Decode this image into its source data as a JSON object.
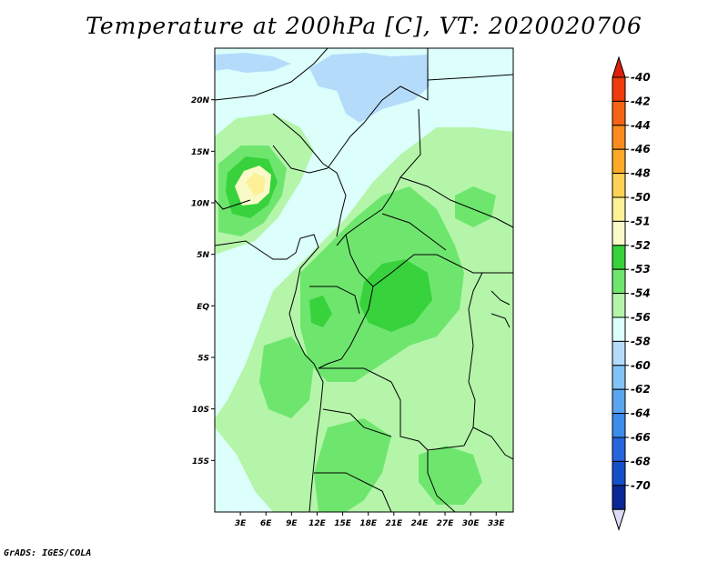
{
  "title": "Temperature at 200hPa [C], VT: 2020020706",
  "credit": "GrADS: IGES/COLA",
  "map": {
    "lat_ticks": [
      {
        "lat": 20,
        "label": "20N"
      },
      {
        "lat": 15,
        "label": "15N"
      },
      {
        "lat": 10,
        "label": "10N"
      },
      {
        "lat": 5,
        "label": "5N"
      },
      {
        "lat": 0,
        "label": "EQ"
      },
      {
        "lat": -5,
        "label": "5S"
      },
      {
        "lat": -10,
        "label": "10S"
      },
      {
        "lat": -15,
        "label": "15S"
      }
    ],
    "lon_ticks": [
      {
        "lon": 3,
        "label": "3E"
      },
      {
        "lon": 6,
        "label": "6E"
      },
      {
        "lon": 9,
        "label": "9E"
      },
      {
        "lon": 12,
        "label": "12E"
      },
      {
        "lon": 15,
        "label": "15E"
      },
      {
        "lon": 18,
        "label": "18E"
      },
      {
        "lon": 21,
        "label": "21E"
      },
      {
        "lon": 24,
        "label": "24E"
      },
      {
        "lon": 27,
        "label": "27E"
      },
      {
        "lon": 30,
        "label": "30E"
      },
      {
        "lon": 33,
        "label": "33E"
      }
    ],
    "lon_range": [
      0,
      35
    ],
    "lat_range": [
      -20,
      25
    ]
  },
  "colorbar": {
    "levels": [
      {
        "label": "-40",
        "color": "#f03c0a"
      },
      {
        "label": "-42",
        "color": "#f56414"
      },
      {
        "label": "-44",
        "color": "#fa8c1e"
      },
      {
        "label": "-46",
        "color": "#fcaa28"
      },
      {
        "label": "-48",
        "color": "#fdd255"
      },
      {
        "label": "-50",
        "color": "#fdf096"
      },
      {
        "label": "-51",
        "color": "#fafac8"
      },
      {
        "label": "-52",
        "color": "#37d23c"
      },
      {
        "label": "-53",
        "color": "#6ee66e"
      },
      {
        "label": "-54",
        "color": "#b4f5aa"
      },
      {
        "label": "-56",
        "color": "#dcfffc"
      },
      {
        "label": "-58",
        "color": "#b4dcfa"
      },
      {
        "label": "-60",
        "color": "#82c3f5"
      },
      {
        "label": "-62",
        "color": "#5aa5f0"
      },
      {
        "label": "-64",
        "color": "#3c8ceb"
      },
      {
        "label": "-66",
        "color": "#2864dc"
      },
      {
        "label": "-68",
        "color": "#1450c8"
      },
      {
        "label": "-70",
        "color": "#0a2896"
      }
    ],
    "top_color": "#dc1e0a",
    "bottom_color": "#dcdcf5"
  }
}
